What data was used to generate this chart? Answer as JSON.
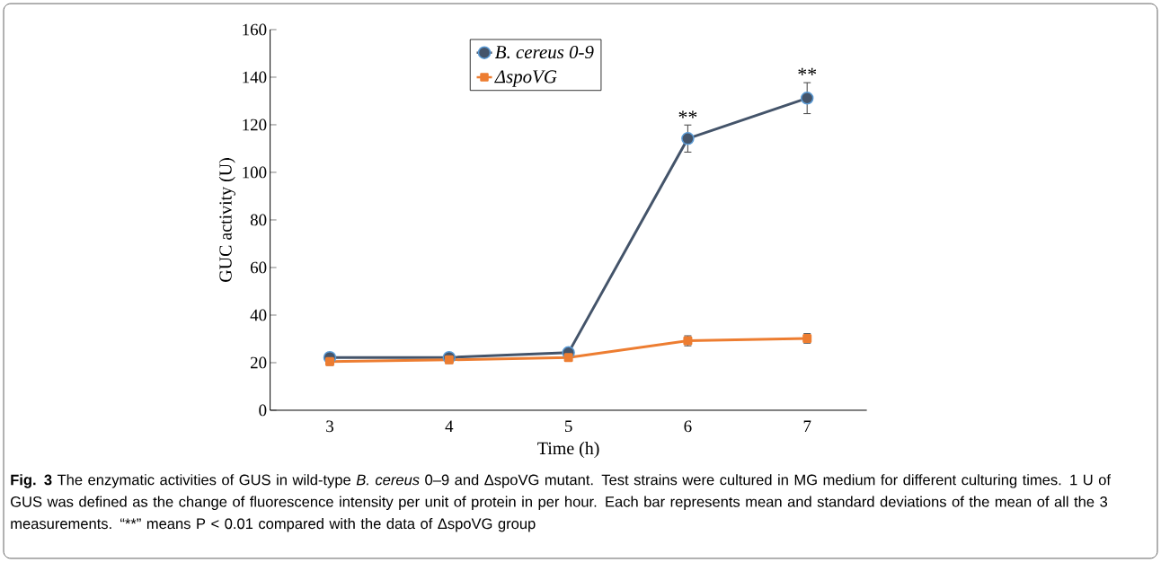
{
  "chart_data": {
    "type": "line",
    "xlabel": "Time (h)",
    "ylabel": "GUC activity (U)",
    "categories": [
      "3",
      "4",
      "5",
      "6",
      "7"
    ],
    "ylim": [
      0,
      160
    ],
    "yticks": [
      0,
      20,
      40,
      60,
      80,
      100,
      120,
      140,
      160
    ],
    "legend": "top",
    "series": [
      {
        "name": "B. cereus 0-9",
        "color": "#44546a",
        "marker": "circle",
        "values": [
          22.2,
          22.2,
          24.2,
          114.2,
          131.2
        ],
        "errors": [
          null,
          null,
          null,
          5.7,
          6.5
        ]
      },
      {
        "name": "ΔspoVG",
        "color": "#ed7d31",
        "marker": "square",
        "values": [
          20.5,
          21.2,
          22.2,
          29.2,
          30.2
        ],
        "errors": [
          1.6,
          1.5,
          1.5,
          2.1,
          2
        ]
      }
    ],
    "annotations": [
      {
        "text": "**",
        "x": "6",
        "y": 120
      },
      {
        "text": "**",
        "x": "7",
        "y": 138
      },
      "Fig. 3",
      "The enzymatic activities of GUS in wild-type *B. cereus* 0–9 and ΔspoVG mutant. Test strains were cultured in MG medium for different culturing times. 1 U of GUS was defined as the change of fluorescence intensity per unit of protein in per hour. Each bar represents mean and standard deviations of the mean of all the 3 measurements.",
      "“**” means P < 0.01 compared with the data of ΔspoVG group"
    ]
  }
}
